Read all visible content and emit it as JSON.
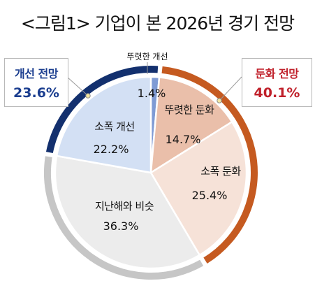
{
  "title": "<그림1> 기업이 본 2026년 경기 전망",
  "chart_data": {
    "type": "pie",
    "title": "<그림1> 기업이 본 2026년 경기 전망",
    "slices": [
      {
        "label": "뚜렷한 개선",
        "value": 1.4,
        "value_label": "1.4%",
        "color": "#7f9bd4"
      },
      {
        "label": "뚜렷한 둔화",
        "value": 14.7,
        "value_label": "14.7%",
        "color": "#eabfaa"
      },
      {
        "label": "소폭 둔화",
        "value": 25.4,
        "value_label": "25.4%",
        "color": "#f6e2d8"
      },
      {
        "label": "지난해와 비슷",
        "value": 36.3,
        "value_label": "36.3%",
        "color": "#ececec"
      },
      {
        "label": "소폭 개선",
        "value": 22.2,
        "value_label": "22.2%",
        "color": "#d3e0f4"
      }
    ],
    "groups": [
      {
        "label": "개선 전망",
        "value": 23.6,
        "value_label": "23.6%",
        "color": "#1a3d8f",
        "ring_color": "#13306e"
      },
      {
        "label": "둔화 전망",
        "value": 40.1,
        "value_label": "40.1%",
        "color": "#c0202a",
        "ring_color": "#c55a20"
      }
    ],
    "neutral_ring_color": "#c6c6c6"
  }
}
